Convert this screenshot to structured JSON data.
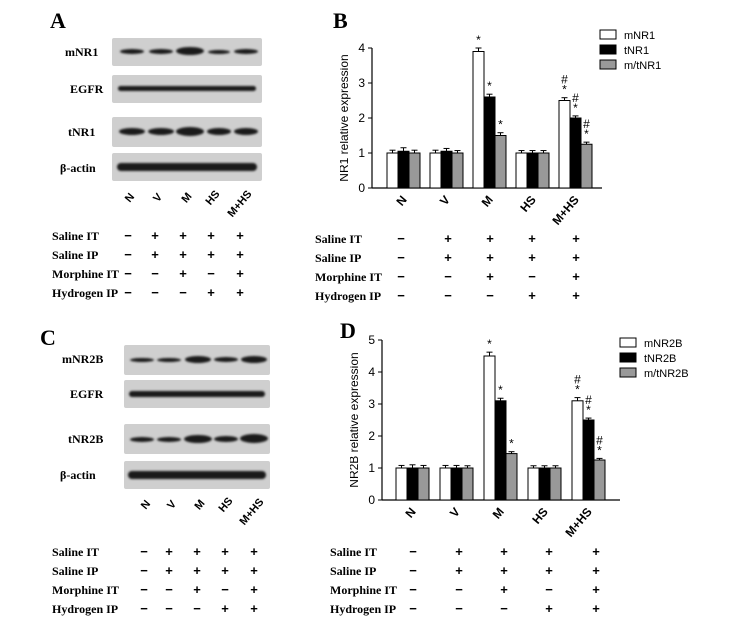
{
  "lanes": [
    "N",
    "V",
    "M",
    "HS",
    "M+HS"
  ],
  "conditions": {
    "labels": [
      "Saline IT",
      "Saline IP",
      "Morphine IT",
      "Hydrogen IP"
    ],
    "matrix": [
      [
        "−",
        "+",
        "+",
        "+",
        "+"
      ],
      [
        "−",
        "+",
        "+",
        "+",
        "+"
      ],
      [
        "−",
        "−",
        "+",
        "−",
        "+"
      ],
      [
        "−",
        "−",
        "−",
        "+",
        "+"
      ]
    ]
  },
  "panels": {
    "A": {
      "letter": "A",
      "blots": [
        "mNR1",
        "EGFR",
        "tNR1",
        "β-actin"
      ]
    },
    "B": {
      "letter": "B"
    },
    "C": {
      "letter": "C",
      "blots": [
        "mNR2B",
        "EGFR",
        "tNR2B",
        "β-actin"
      ]
    },
    "D": {
      "letter": "D"
    }
  },
  "chart_data": [
    {
      "type": "bar",
      "panel": "B",
      "categories": [
        "N",
        "V",
        "M",
        "HS",
        "M+HS"
      ],
      "ylabel": "NR1 relative expression",
      "ylim": [
        0,
        4
      ],
      "yticks": [
        0,
        1,
        2,
        3,
        4
      ],
      "legend": "top-right",
      "series": [
        {
          "name": "mNR1",
          "color": "#ffffff",
          "values": [
            1.0,
            1.0,
            3.9,
            1.0,
            2.5
          ],
          "errors": [
            0.08,
            0.08,
            0.1,
            0.07,
            0.08
          ],
          "annotations": [
            "",
            "",
            "*",
            "",
            "#\n*"
          ]
        },
        {
          "name": "tNR1",
          "color": "#000000",
          "values": [
            1.05,
            1.05,
            2.6,
            1.0,
            2.0
          ],
          "errors": [
            0.1,
            0.08,
            0.08,
            0.07,
            0.06
          ],
          "annotations": [
            "",
            "",
            "*",
            "",
            "#\n*"
          ]
        },
        {
          "name": "m/tNR1",
          "color": "#999999",
          "values": [
            1.0,
            1.0,
            1.5,
            1.0,
            1.25
          ],
          "errors": [
            0.08,
            0.07,
            0.08,
            0.07,
            0.06
          ],
          "annotations": [
            "",
            "",
            "*",
            "",
            "#\n*"
          ]
        }
      ]
    },
    {
      "type": "bar",
      "panel": "D",
      "categories": [
        "N",
        "V",
        "M",
        "HS",
        "M+HS"
      ],
      "ylabel": "NR2B relative expression",
      "ylim": [
        0,
        5
      ],
      "yticks": [
        0,
        1,
        2,
        3,
        4,
        5
      ],
      "legend": "top-right",
      "series": [
        {
          "name": "mNR2B",
          "color": "#ffffff",
          "values": [
            1.0,
            1.0,
            4.5,
            1.0,
            3.1
          ],
          "errors": [
            0.08,
            0.08,
            0.12,
            0.07,
            0.1
          ],
          "annotations": [
            "",
            "",
            "*",
            "",
            "#\n*"
          ]
        },
        {
          "name": "tNR2B",
          "color": "#000000",
          "values": [
            1.0,
            1.0,
            3.1,
            1.0,
            2.5
          ],
          "errors": [
            0.1,
            0.08,
            0.08,
            0.07,
            0.06
          ],
          "annotations": [
            "",
            "",
            "*",
            "",
            "#\n*"
          ]
        },
        {
          "name": "m/tNR2B",
          "color": "#999999",
          "values": [
            1.0,
            1.0,
            1.45,
            1.0,
            1.25
          ],
          "errors": [
            0.08,
            0.07,
            0.06,
            0.07,
            0.05
          ],
          "annotations": [
            "",
            "",
            "*",
            "",
            "#\n*"
          ]
        }
      ]
    }
  ]
}
